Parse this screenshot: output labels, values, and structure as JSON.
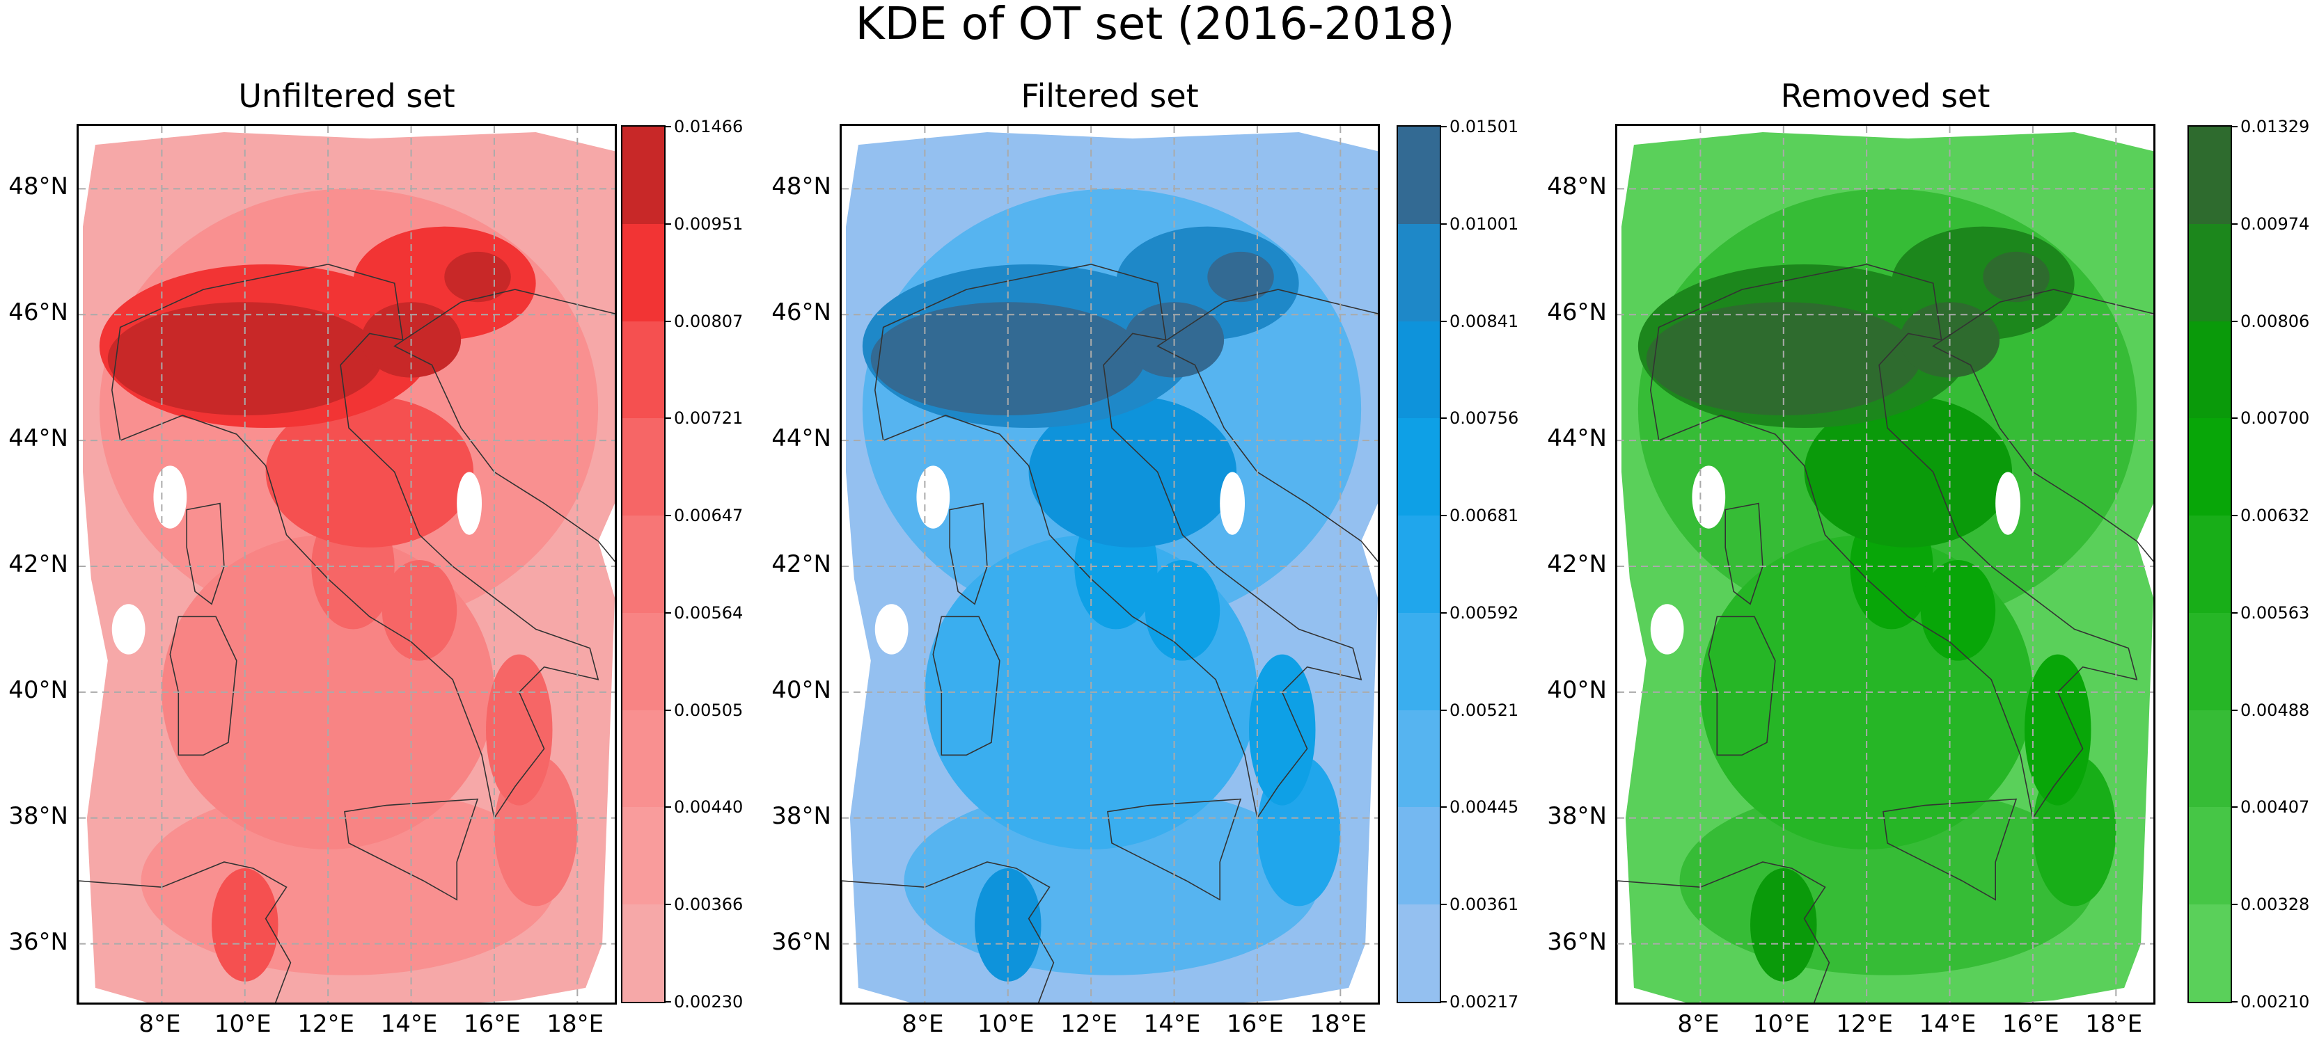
{
  "figure": {
    "title": "KDE of OT set (2016-2018)"
  },
  "axes": {
    "lat_labels": [
      "48°N",
      "46°N",
      "44°N",
      "42°N",
      "40°N",
      "38°N",
      "36°N"
    ],
    "lon_labels": [
      "8°E",
      "10°E",
      "12°E",
      "14°E",
      "16°E",
      "18°E"
    ],
    "lat_range": [
      35,
      49
    ],
    "lon_range": [
      6,
      19
    ],
    "grid": "dashed"
  },
  "panels": [
    {
      "title": "Unfiltered set",
      "colorbar_ticks": [
        "0.01466",
        "0.00951",
        "0.00807",
        "0.00721",
        "0.00647",
        "0.00564",
        "0.00505",
        "0.00440",
        "0.00366",
        "0.00230"
      ],
      "colors": [
        "#c82828",
        "#f23434",
        "#f55050",
        "#f66666",
        "#f77676",
        "#f88484",
        "#f99090",
        "#f99c9c",
        "#f6a8a8"
      ]
    },
    {
      "title": "Filtered set",
      "colorbar_ticks": [
        "0.01501",
        "0.01001",
        "0.00841",
        "0.00756",
        "0.00681",
        "0.00592",
        "0.00521",
        "0.00445",
        "0.00361",
        "0.00217"
      ],
      "colors": [
        "#336a93",
        "#1e88c8",
        "#0e93db",
        "#0ea0e6",
        "#20a6ec",
        "#3aaeef",
        "#56b4f0",
        "#74b8f1",
        "#94c0f0"
      ]
    },
    {
      "title": "Removed set",
      "colorbar_ticks": [
        "0.01329",
        "0.00974",
        "0.00806",
        "0.00700",
        "0.00632",
        "0.00563",
        "0.00488",
        "0.00407",
        "0.00328",
        "0.00210"
      ],
      "colors": [
        "#2e6b2e",
        "#1c871c",
        "#0a9a0a",
        "#08a608",
        "#18ae18",
        "#26b626",
        "#36bc36",
        "#46c646",
        "#5ad05a"
      ]
    }
  ]
}
